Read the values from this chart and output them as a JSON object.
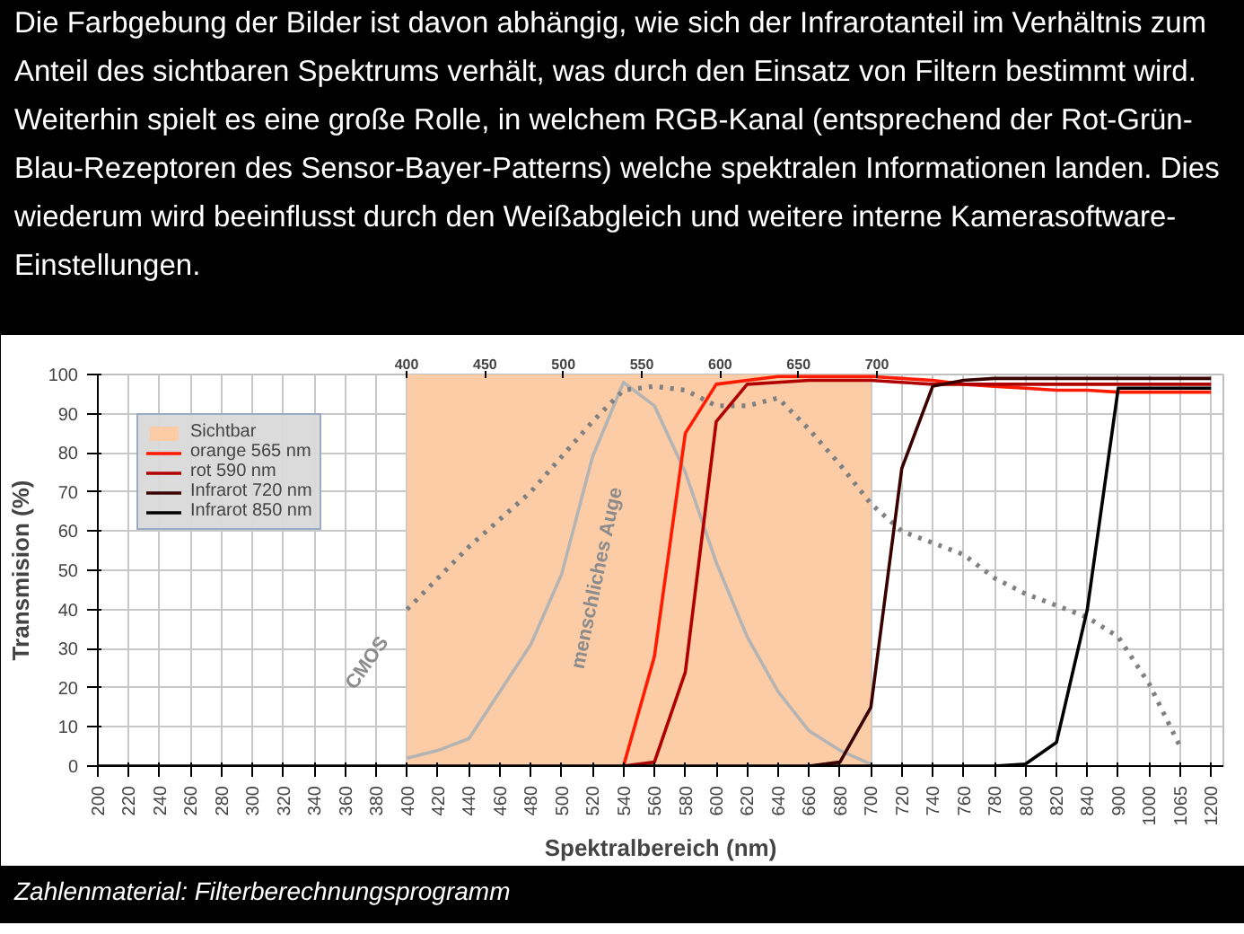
{
  "chart_data": {
    "type": "line",
    "title": "Die Farbgebung der Bilder ist davon abhängig, wie sich der Infrarotanteil im Verhältnis zum Anteil des sichtbaren Spektrums verhält, was durch den Einsatz von Filtern bestimmt wird.",
    "subtitle": "Weiterhin spielt es eine große Rolle, in welchem RGB-Kanal (entsprechend der Rot-Grün-Blau-Rezeptoren des Sensor-Bayer-Patterns) welche spektralen Informationen landen. Dies wiederum wird beeinflusst durch den Weißabgleich und weitere interne Kamerasoftware-Einstellungen.",
    "xlabel": "Spektralbereich (nm)",
    "ylabel": "Transmision (%)",
    "categories": [
      "200",
      "220",
      "240",
      "260",
      "280",
      "300",
      "320",
      "340",
      "360",
      "380",
      "400",
      "420",
      "440",
      "460",
      "480",
      "500",
      "520",
      "540",
      "560",
      "580",
      "600",
      "620",
      "640",
      "660",
      "680",
      "700",
      "720",
      "740",
      "760",
      "780",
      "800",
      "820",
      "840",
      "900",
      "1000",
      "1065",
      "1200"
    ],
    "series": [
      {
        "name": "Sichtbar",
        "type": "area",
        "color": "#fbcca6",
        "values": [
          null,
          null,
          null,
          null,
          null,
          null,
          null,
          null,
          null,
          null,
          100,
          100,
          100,
          100,
          100,
          100,
          100,
          100,
          100,
          100,
          100,
          100,
          100,
          100,
          100,
          100,
          null,
          null,
          null,
          null,
          null,
          null,
          null,
          null,
          null,
          null,
          null
        ]
      },
      {
        "color": "#b4b4b4",
        "values": [
          null,
          null,
          null,
          null,
          null,
          null,
          null,
          null,
          null,
          null,
          2,
          4,
          7,
          19,
          31,
          49,
          79,
          98,
          92,
          75,
          52,
          33,
          19,
          9,
          4,
          0.5,
          null,
          null,
          null,
          null,
          null,
          null,
          null,
          null,
          null,
          null,
          null
        ]
      },
      {
        "color": "#808080",
        "line_style": "dotted",
        "values": [
          null,
          null,
          null,
          null,
          null,
          null,
          null,
          null,
          null,
          null,
          40,
          48,
          56,
          63,
          70,
          79,
          88,
          96,
          97,
          96,
          92,
          92,
          94,
          86,
          77,
          67,
          60,
          57,
          54,
          48,
          44,
          41,
          38,
          33,
          21,
          5,
          null
        ]
      },
      {
        "name": "orange 565 nm",
        "color": "#ff1a00",
        "values": [
          null,
          null,
          null,
          null,
          null,
          null,
          null,
          null,
          null,
          null,
          null,
          null,
          null,
          null,
          null,
          null,
          null,
          0,
          28,
          85,
          97.5,
          98.5,
          99.5,
          99.5,
          99.5,
          99.5,
          99,
          98.5,
          97.5,
          97,
          96.5,
          96,
          96,
          95.5,
          95.5,
          95.5,
          95.5
        ]
      },
      {
        "name": "rot 590 nm",
        "color": "#b00000",
        "values": [
          null,
          null,
          null,
          null,
          null,
          null,
          null,
          null,
          null,
          null,
          null,
          null,
          null,
          null,
          null,
          null,
          null,
          0,
          1,
          24,
          88,
          97.5,
          98,
          98.5,
          98.5,
          98.5,
          98,
          97.5,
          97.5,
          97.5,
          97.5,
          97.5,
          97.5,
          97.5,
          97.5,
          97.5,
          97.5
        ]
      },
      {
        "name": "Infrarot 720 nm",
        "color": "#3a0000",
        "values": [
          null,
          null,
          null,
          null,
          null,
          null,
          null,
          null,
          null,
          null,
          null,
          null,
          null,
          null,
          null,
          null,
          null,
          null,
          null,
          null,
          null,
          null,
          null,
          0,
          1,
          15,
          76,
          97,
          98.5,
          99,
          99,
          99,
          99,
          99,
          99,
          99,
          99
        ]
      },
      {
        "name": "Infrarot 850 nm",
        "color": "#000000",
        "values": [
          0,
          0,
          0,
          0,
          0,
          0,
          0,
          0,
          0,
          0,
          0,
          0,
          0,
          0,
          0,
          0,
          0,
          0,
          0,
          0,
          0,
          0,
          0,
          0,
          0,
          0,
          0,
          0,
          0,
          0,
          0.5,
          6,
          40,
          96.5,
          96.5,
          96.5,
          96.5
        ]
      }
    ],
    "ylim": [
      0,
      100
    ],
    "yticks": [
      0,
      10,
      20,
      30,
      40,
      50,
      60,
      70,
      80,
      90,
      100
    ],
    "x2lim": [
      203,
      921
    ],
    "x2ticks": [
      400,
      450,
      500,
      550,
      600,
      650,
      700
    ],
    "grid": true,
    "legend": "top left",
    "annotations": [
      {
        "text": "CMOS",
        "x": "400",
        "y": 40
      },
      {
        "text": "menschliches Auge",
        "x": "500",
        "y": 49
      },
      "Zahlenmaterial: Filterberechnungsprogramm"
    ]
  }
}
